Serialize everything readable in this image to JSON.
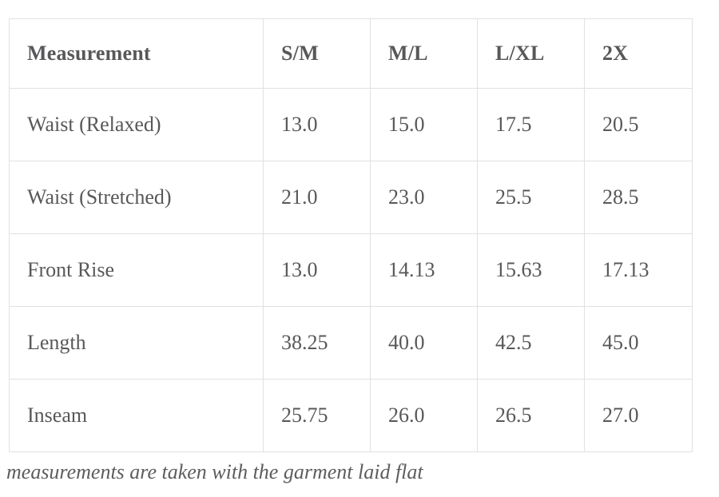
{
  "chart_data": {
    "type": "table",
    "columns": [
      "Measurement",
      "S/M",
      "M/L",
      "L/XL",
      "2X"
    ],
    "rows": [
      {
        "label": "Waist (Relaxed)",
        "values": [
          "13.0",
          "15.0",
          "17.5",
          "20.5"
        ]
      },
      {
        "label": "Waist (Stretched)",
        "values": [
          "21.0",
          "23.0",
          "25.5",
          "28.5"
        ]
      },
      {
        "label": "Front Rise",
        "values": [
          "13.0",
          "14.13",
          "15.63",
          "17.13"
        ]
      },
      {
        "label": "Length",
        "values": [
          "38.25",
          "40.0",
          "42.5",
          "45.0"
        ]
      },
      {
        "label": "Inseam",
        "values": [
          "25.75",
          "26.0",
          "26.5",
          "27.0"
        ]
      }
    ]
  },
  "footnote": "measurements are taken with the garment laid flat",
  "colors": {
    "text": "#58585a",
    "border": "#e1e1e1",
    "background": "#ffffff"
  }
}
